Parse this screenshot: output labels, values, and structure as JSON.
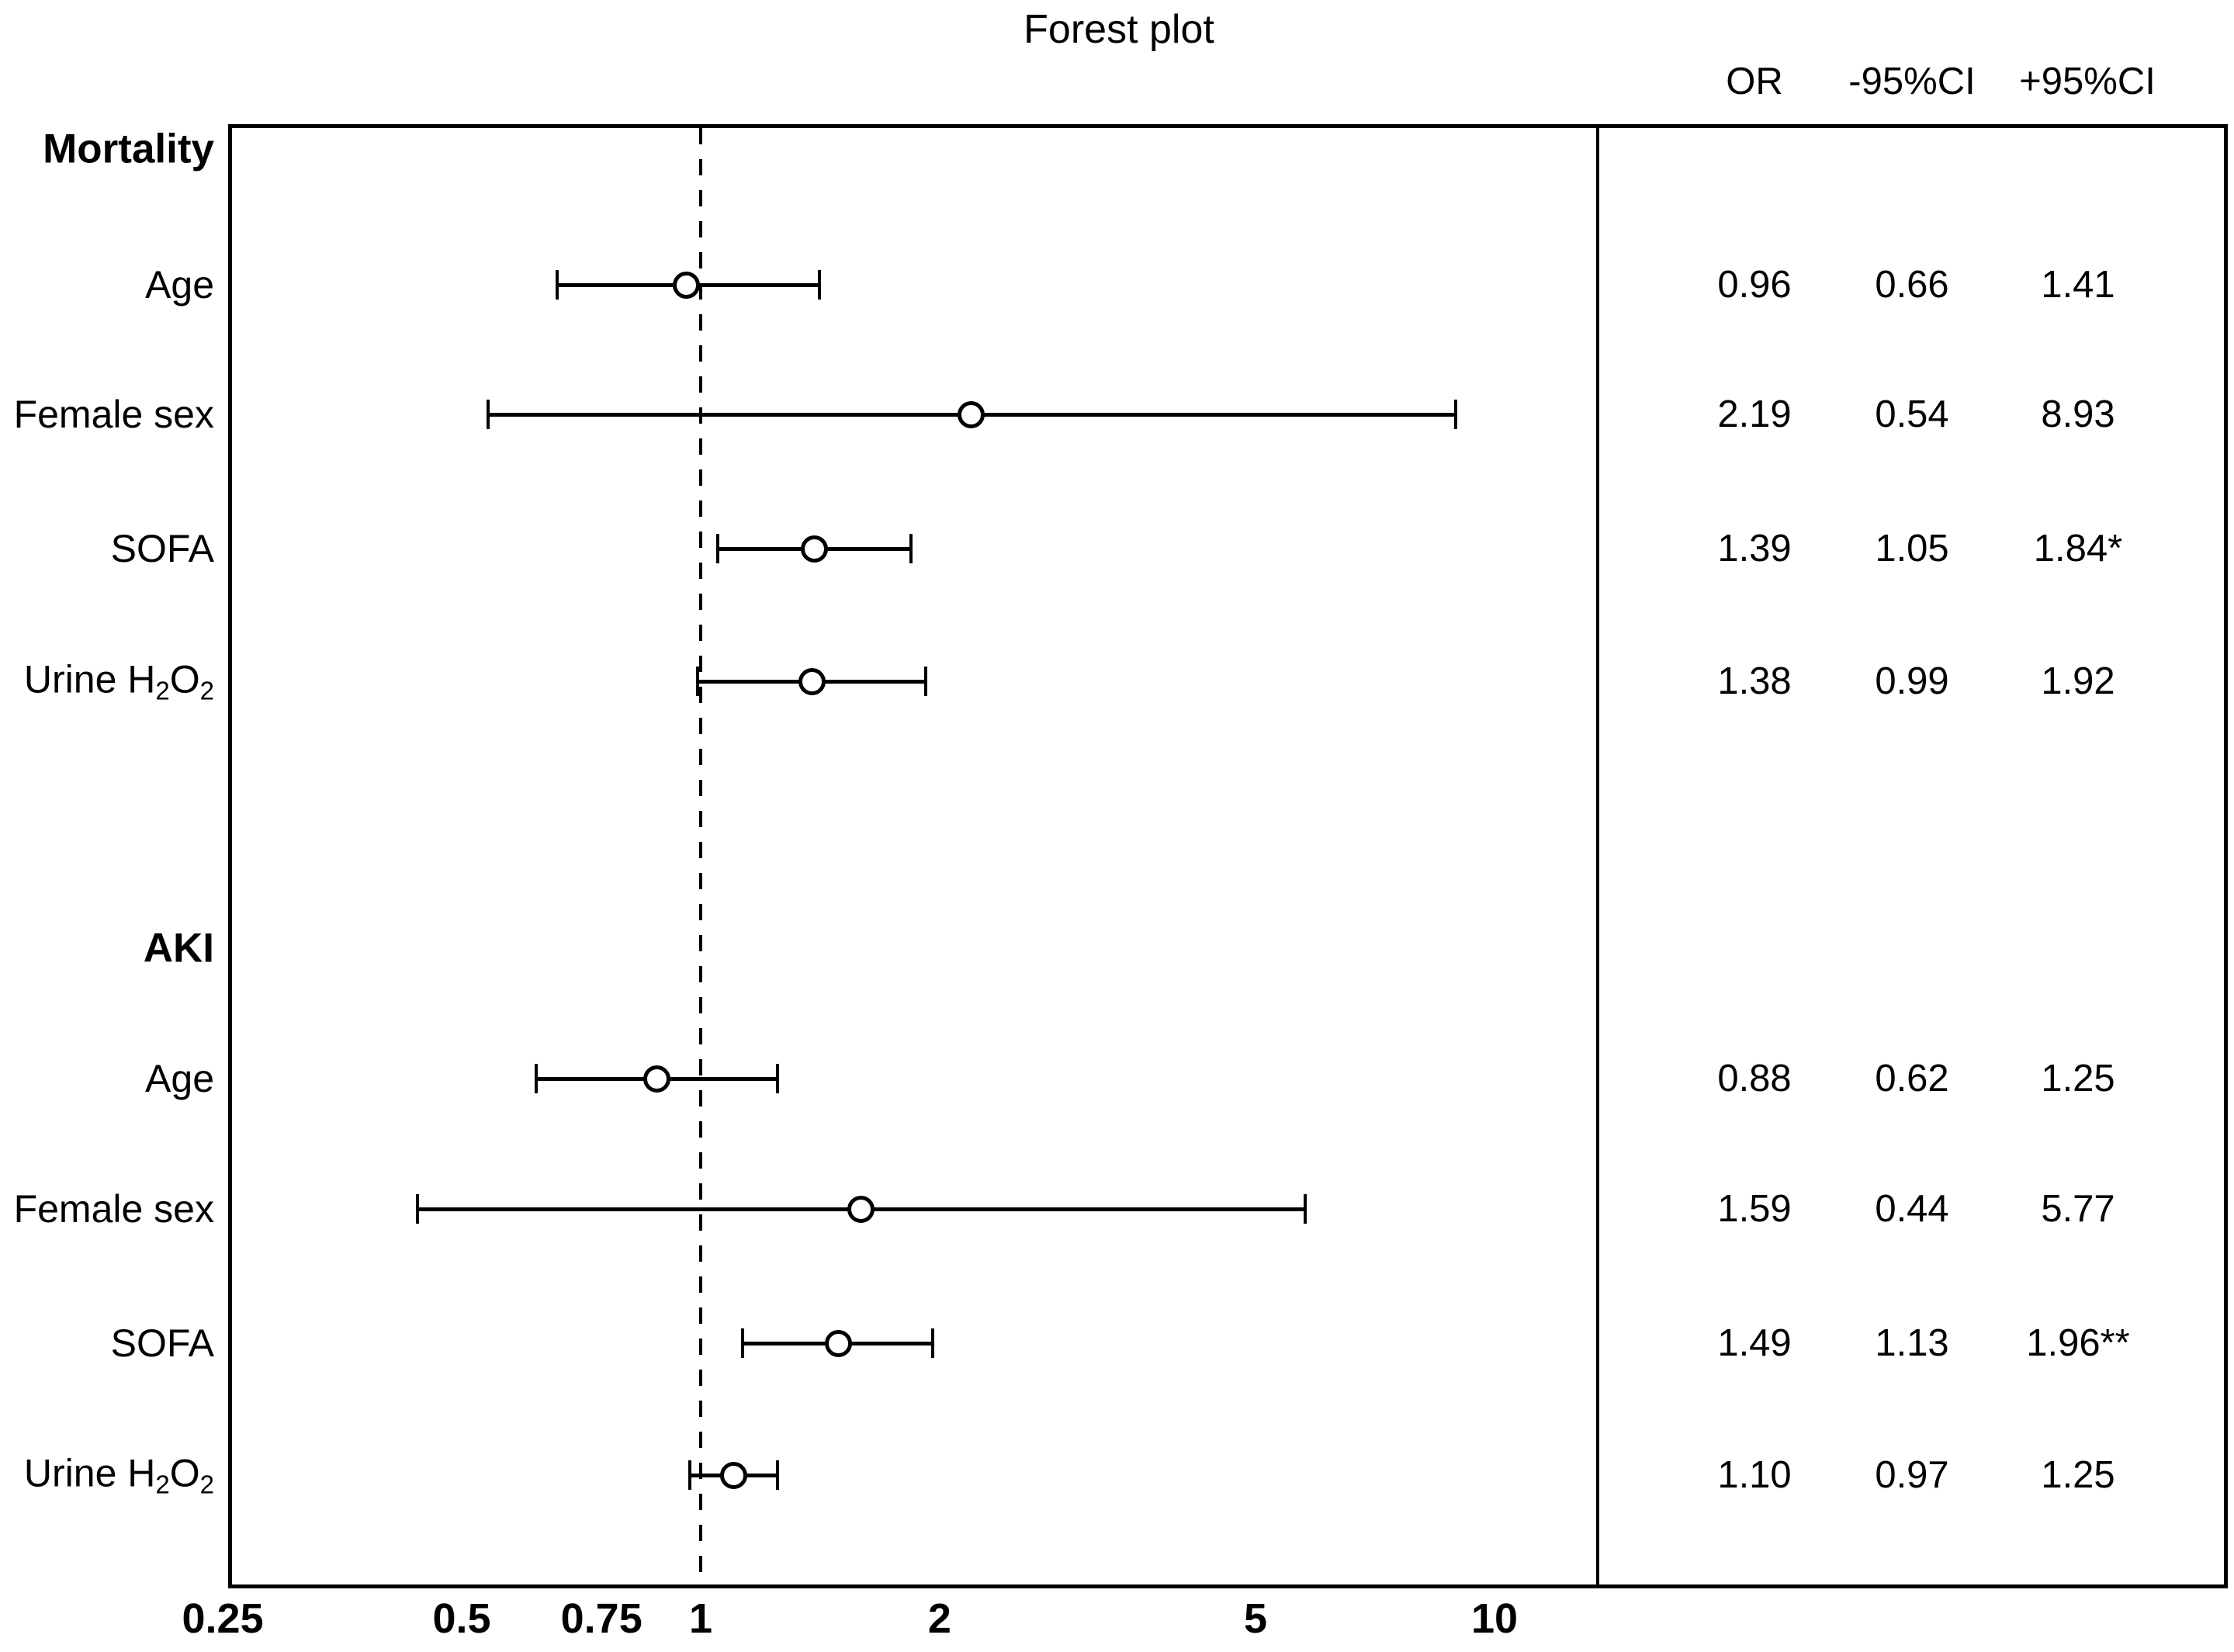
{
  "chart_data": {
    "type": "forest",
    "title": "Forest plot",
    "value_columns": [
      "OR",
      "-95%CI",
      "+95%CI"
    ],
    "x_axis": {
      "scale": "log",
      "tick_labels": [
        "0.25",
        "0.5",
        "0.75",
        "1",
        "2",
        "5",
        "10"
      ],
      "tick_values": [
        0.25,
        0.5,
        0.75,
        1,
        2,
        5,
        10
      ],
      "range": [
        0.25,
        13.5
      ],
      "reference_line": 1,
      "grid": false
    },
    "legend": "none",
    "sections": [
      {
        "header": "Mortality",
        "rows": [
          {
            "label": "Age",
            "label_parts": [
              [
                "t",
                "Age"
              ]
            ],
            "or": 0.96,
            "ci_low": 0.66,
            "ci_high": 1.41,
            "display": [
              "0.96",
              "0.66",
              "1.41"
            ]
          },
          {
            "label": "Female sex",
            "label_parts": [
              [
                "t",
                "Female sex"
              ]
            ],
            "or": 2.19,
            "ci_low": 0.54,
            "ci_high": 8.93,
            "display": [
              "2.19",
              "0.54",
              "8.93"
            ]
          },
          {
            "label": "SOFA",
            "label_parts": [
              [
                "t",
                "SOFA"
              ]
            ],
            "or": 1.39,
            "ci_low": 1.05,
            "ci_high": 1.84,
            "display": [
              "1.39",
              "1.05",
              "1.84*"
            ]
          },
          {
            "label": "Urine H2O2",
            "label_parts": [
              [
                "t",
                "Urine H"
              ],
              [
                "s",
                "2"
              ],
              [
                "t",
                "O"
              ],
              [
                "s",
                "2"
              ]
            ],
            "or": 1.38,
            "ci_low": 0.99,
            "ci_high": 1.92,
            "display": [
              "1.38",
              "0.99",
              "1.92"
            ]
          }
        ]
      },
      {
        "header": "AKI",
        "rows": [
          {
            "label": "Age",
            "label_parts": [
              [
                "t",
                "Age"
              ]
            ],
            "or": 0.88,
            "ci_low": 0.62,
            "ci_high": 1.25,
            "display": [
              "0.88",
              "0.62",
              "1.25"
            ]
          },
          {
            "label": "Female sex",
            "label_parts": [
              [
                "t",
                "Female sex"
              ]
            ],
            "or": 1.59,
            "ci_low": 0.44,
            "ci_high": 5.77,
            "display": [
              "1.59",
              "0.44",
              "5.77"
            ]
          },
          {
            "label": "SOFA",
            "label_parts": [
              [
                "t",
                "SOFA"
              ]
            ],
            "or": 1.49,
            "ci_low": 1.13,
            "ci_high": 1.96,
            "display": [
              "1.49",
              "1.13",
              "1.96**"
            ]
          },
          {
            "label": "Urine H2O2",
            "label_parts": [
              [
                "t",
                "Urine H"
              ],
              [
                "s",
                "2"
              ],
              [
                "t",
                "O"
              ],
              [
                "s",
                "2"
              ]
            ],
            "or": 1.1,
            "ci_low": 0.97,
            "ci_high": 1.25,
            "display": [
              "1.10",
              "0.97",
              "1.25"
            ]
          }
        ]
      }
    ],
    "colors": {
      "ink": "#000000",
      "background": "#ffffff"
    }
  }
}
